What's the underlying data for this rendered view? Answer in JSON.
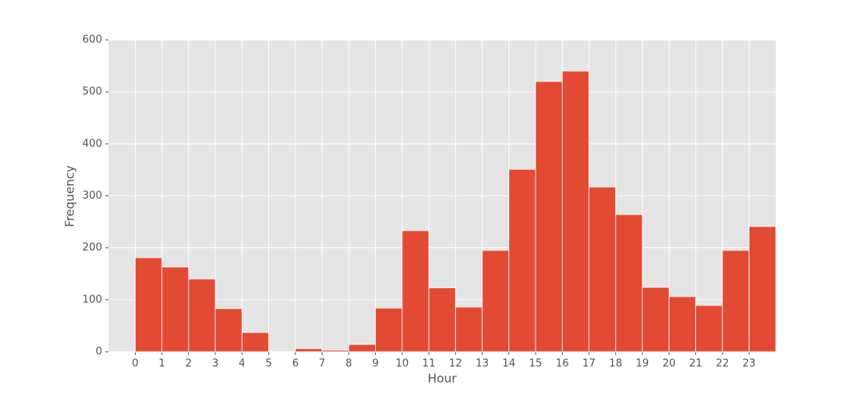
{
  "chart_data": {
    "type": "histogram",
    "xlabel": "Hour",
    "ylabel": "Frequency",
    "bins": [
      0,
      1,
      2,
      3,
      4,
      5,
      6,
      7,
      8,
      9,
      10,
      11,
      12,
      13,
      14,
      15,
      16,
      17,
      18,
      19,
      20,
      21,
      22,
      23,
      24
    ],
    "values": [
      181,
      163,
      140,
      83,
      37,
      0,
      6,
      3,
      14,
      84,
      233,
      123,
      86,
      195,
      351,
      520,
      540,
      317,
      264,
      124,
      106,
      89,
      195,
      241
    ],
    "color": "#E24A33",
    "xlim": [
      -1,
      24
    ],
    "xticks": [
      0,
      1,
      2,
      3,
      4,
      5,
      6,
      7,
      8,
      9,
      10,
      11,
      12,
      13,
      14,
      15,
      16,
      17,
      18,
      19,
      20,
      21,
      22,
      23
    ],
    "ylim": [
      0,
      600
    ],
    "yticks": [
      0,
      100,
      200,
      300,
      400,
      500,
      600
    ],
    "grid": true
  }
}
